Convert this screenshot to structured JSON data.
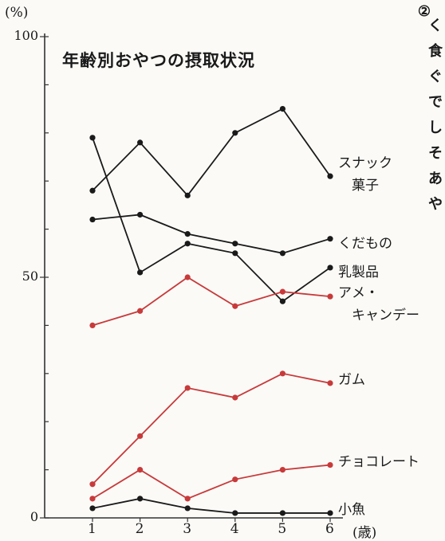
{
  "chart_data": {
    "type": "line",
    "title": "年齢別おやつの摂取状況",
    "ylabel": "(%)",
    "xlabel": "(歳)",
    "ylim": [
      0,
      100
    ],
    "y_ticks": [
      "0",
      "50",
      "100"
    ],
    "categories": [
      "1",
      "2",
      "3",
      "4",
      "5",
      "6"
    ],
    "grid": false,
    "series": [
      {
        "name": "スナック\n　菓子",
        "color": "#1a1a1a",
        "values": [
          68,
          78,
          67,
          80,
          85,
          71
        ]
      },
      {
        "name": "くだもの",
        "color": "#1a1a1a",
        "values": [
          62,
          63,
          59,
          57,
          55,
          58
        ]
      },
      {
        "name": "乳製品",
        "color": "#1a1a1a",
        "values": [
          79,
          51,
          57,
          55,
          45,
          52
        ]
      },
      {
        "name": "アメ・\n　キャンデー",
        "color": "#c83a3a",
        "values": [
          40,
          43,
          50,
          44,
          47,
          46
        ]
      },
      {
        "name": "ガム",
        "color": "#c83a3a",
        "values": [
          7,
          17,
          27,
          25,
          30,
          28
        ]
      },
      {
        "name": "チョコレート",
        "color": "#c83a3a",
        "values": [
          4,
          10,
          4,
          8,
          10,
          11
        ]
      },
      {
        "name": "小魚",
        "color": "#1a1a1a",
        "values": [
          2,
          4,
          2,
          1,
          1,
          1
        ]
      }
    ]
  },
  "side_note": {
    "columns": [
      "②",
      "く",
      "食",
      "ぐ",
      "で",
      "し",
      "そ",
      "あ",
      "や"
    ]
  }
}
